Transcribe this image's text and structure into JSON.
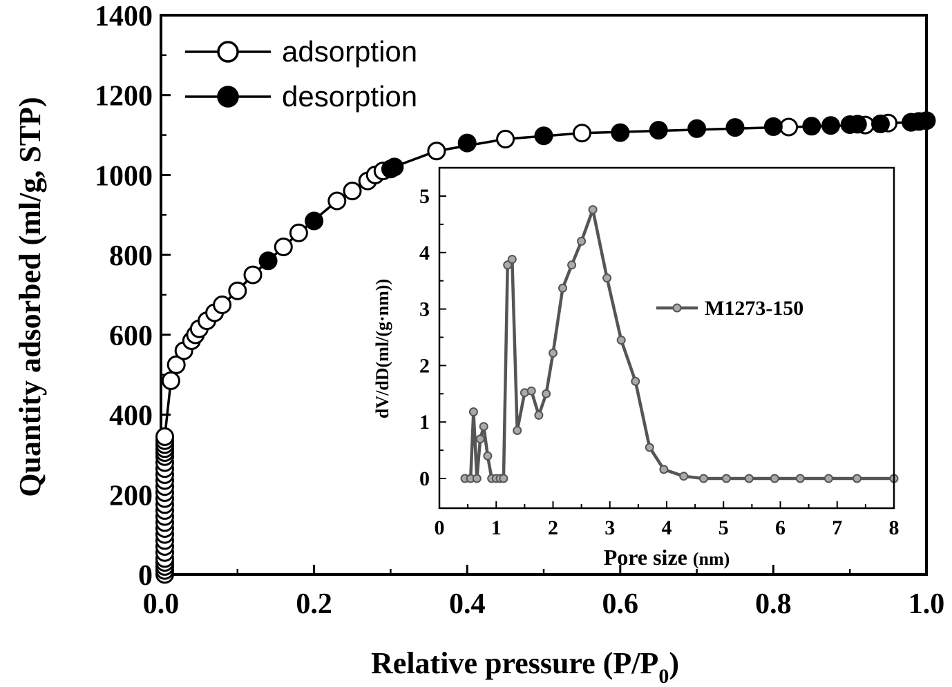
{
  "chart_data": [
    {
      "type": "scatter",
      "xlabel": "Relative pressure (P/P",
      "xlabel_sub": "0",
      "xlabel_end": ")",
      "ylabel": "Quantity adsorbed (ml/g, STP)",
      "xlim": [
        0.0,
        1.0
      ],
      "ylim": [
        0,
        1400
      ],
      "xticks": [
        "0.0",
        "0.2",
        "0.4",
        "0.6",
        "0.8",
        "1.0"
      ],
      "yticks": [
        "0",
        "200",
        "400",
        "600",
        "800",
        "1000",
        "1200",
        "1400"
      ],
      "legend_position": "top-left",
      "series": [
        {
          "name": "adsorption",
          "marker": "open-circle",
          "color": "#000000",
          "x": [
            0.005,
            0.005,
            0.005,
            0.005,
            0.005,
            0.005,
            0.005,
            0.005,
            0.005,
            0.005,
            0.005,
            0.005,
            0.005,
            0.005,
            0.005,
            0.005,
            0.005,
            0.005,
            0.005,
            0.005,
            0.005,
            0.005,
            0.005,
            0.005,
            0.005,
            0.005,
            0.005,
            0.013,
            0.02,
            0.03,
            0.04,
            0.045,
            0.05,
            0.06,
            0.07,
            0.08,
            0.1,
            0.12,
            0.16,
            0.18,
            0.23,
            0.25,
            0.27,
            0.28,
            0.29,
            0.36,
            0.45,
            0.55,
            0.82,
            0.92,
            0.95,
            0.98
          ],
          "y": [
            0,
            10,
            20,
            30,
            40,
            55,
            70,
            85,
            100,
            115,
            130,
            145,
            160,
            175,
            190,
            205,
            220,
            235,
            250,
            265,
            280,
            295,
            305,
            315,
            325,
            335,
            345,
            485,
            525,
            560,
            585,
            600,
            615,
            635,
            655,
            675,
            710,
            750,
            820,
            855,
            935,
            960,
            985,
            1000,
            1010,
            1060,
            1090,
            1105,
            1120,
            1125,
            1130,
            1132
          ]
        },
        {
          "name": "desorption",
          "marker": "filled-circle",
          "color": "#000000",
          "x": [
            0.14,
            0.2,
            0.3,
            0.305,
            0.4,
            0.5,
            0.6,
            0.65,
            0.7,
            0.75,
            0.8,
            0.85,
            0.875,
            0.9,
            0.91,
            0.94,
            0.98,
            0.99,
            1.0
          ],
          "y": [
            785,
            885,
            1015,
            1020,
            1080,
            1098,
            1106,
            1112,
            1116,
            1119,
            1121,
            1122,
            1124,
            1126,
            1127,
            1128,
            1132,
            1134,
            1136
          ]
        }
      ]
    },
    {
      "type": "line",
      "xlabel": "Pore size",
      "xlabel_unit": "(nm)",
      "ylabel": "dV/dD(ml/(g·nm))",
      "xlim": [
        0,
        8
      ],
      "ylim": [
        0,
        5.2
      ],
      "xticks": [
        "0",
        "1",
        "2",
        "3",
        "4",
        "5",
        "6",
        "7",
        "8"
      ],
      "yticks": [
        "0",
        "1",
        "2",
        "3",
        "4",
        "5"
      ],
      "legend_position": "middle-right",
      "series": [
        {
          "name": "M1273-150",
          "color": "#555555",
          "x": [
            0.45,
            0.55,
            0.6,
            0.66,
            0.72,
            0.78,
            0.85,
            0.92,
            1.0,
            1.07,
            1.13,
            1.2,
            1.28,
            1.37,
            1.5,
            1.62,
            1.75,
            1.88,
            2.0,
            2.17,
            2.33,
            2.5,
            2.7,
            2.95,
            3.2,
            3.45,
            3.7,
            3.95,
            4.3,
            4.65,
            5.05,
            5.45,
            5.9,
            6.35,
            6.85,
            7.35,
            8.0
          ],
          "y": [
            0,
            0,
            1.18,
            0,
            0.7,
            0.92,
            0.4,
            0,
            0,
            0,
            0,
            3.78,
            3.88,
            0.85,
            1.52,
            1.55,
            1.12,
            1.5,
            2.22,
            3.37,
            3.78,
            4.2,
            4.76,
            3.55,
            2.45,
            1.72,
            0.55,
            0.16,
            0.04,
            0,
            0,
            0,
            0,
            0,
            0,
            0,
            0
          ]
        }
      ]
    }
  ]
}
